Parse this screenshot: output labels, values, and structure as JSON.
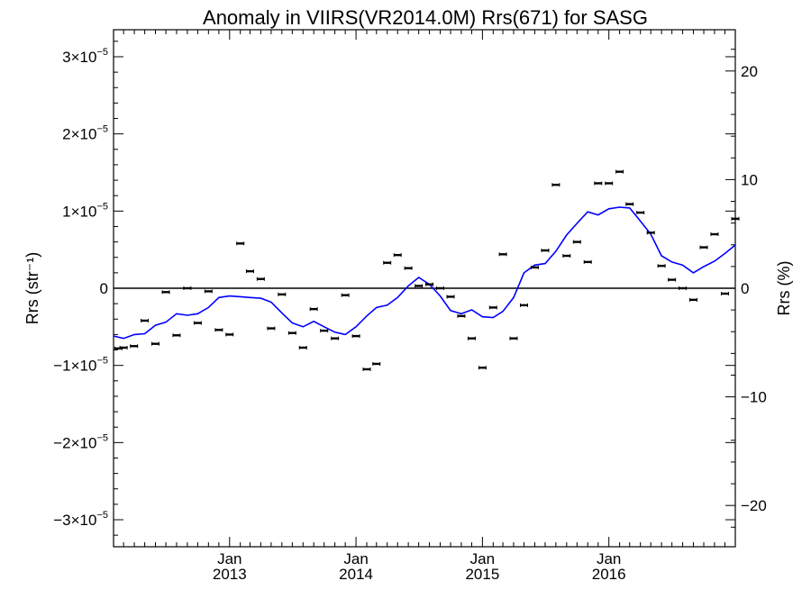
{
  "chart_data": {
    "type": "scatter",
    "title": "Anomaly in VIIRS(VR2014.0M) Rrs(671) for SASG",
    "ylabel_left": "Rrs (str⁻¹)",
    "ylabel_right": "Rrs (%)",
    "xlim": [
      "2012-02-01",
      "2016-12-31"
    ],
    "ylim_left": [
      -3.35e-05,
      3.35e-05
    ],
    "ylim_right": [
      -23.8,
      23.8
    ],
    "grid": false,
    "legend": "none",
    "x_ticks": [
      {
        "date": "2013-01-01",
        "month": "Jan",
        "year": "2013"
      },
      {
        "date": "2014-01-01",
        "month": "Jan",
        "year": "2014"
      },
      {
        "date": "2015-01-01",
        "month": "Jan",
        "year": "2015"
      },
      {
        "date": "2016-01-01",
        "month": "Jan",
        "year": "2016"
      }
    ],
    "y_ticks_left": [
      {
        "value": 3e-05,
        "mantissa": "3",
        "exp": "−5"
      },
      {
        "value": 2e-05,
        "mantissa": "2",
        "exp": "−5"
      },
      {
        "value": 1e-05,
        "mantissa": "1",
        "exp": "−5"
      },
      {
        "value": 0,
        "mantissa": "0",
        "exp": ""
      },
      {
        "value": -1e-05,
        "mantissa": "−1",
        "exp": "−5"
      },
      {
        "value": -2e-05,
        "mantissa": "−2",
        "exp": "−5"
      },
      {
        "value": -3e-05,
        "mantissa": "−3",
        "exp": "−5"
      }
    ],
    "y_ticks_right": [
      {
        "value": 20,
        "label": "20"
      },
      {
        "value": 10,
        "label": "10"
      },
      {
        "value": 0,
        "label": "0"
      },
      {
        "value": -10,
        "label": "−10"
      },
      {
        "value": -20,
        "label": "−20"
      }
    ],
    "zero_line": 0,
    "points": [
      {
        "x": "2012-02-15",
        "y": -7.8e-06
      },
      {
        "x": "2012-03-01",
        "y": -7.7e-06
      },
      {
        "x": "2012-03-31",
        "y": -7.5e-06
      },
      {
        "x": "2012-05-01",
        "y": -4.2e-06
      },
      {
        "x": "2012-06-01",
        "y": -7.2e-06
      },
      {
        "x": "2012-07-01",
        "y": -5e-07
      },
      {
        "x": "2012-08-01",
        "y": -6.1e-06
      },
      {
        "x": "2012-09-01",
        "y": 0.0
      },
      {
        "x": "2012-10-01",
        "y": -4.5e-06
      },
      {
        "x": "2012-11-01",
        "y": -4e-07
      },
      {
        "x": "2012-12-01",
        "y": -5.4e-06
      },
      {
        "x": "2013-01-01",
        "y": -6e-06
      },
      {
        "x": "2013-02-01",
        "y": 5.8e-06
      },
      {
        "x": "2013-03-01",
        "y": 2.2e-06
      },
      {
        "x": "2013-04-01",
        "y": 1.2e-06
      },
      {
        "x": "2013-05-01",
        "y": -5.2e-06
      },
      {
        "x": "2013-06-01",
        "y": -8e-07
      },
      {
        "x": "2013-07-01",
        "y": -5.8e-06
      },
      {
        "x": "2013-08-01",
        "y": -7.7e-06
      },
      {
        "x": "2013-09-01",
        "y": -2.7e-06
      },
      {
        "x": "2013-10-01",
        "y": -5.5e-06
      },
      {
        "x": "2013-11-01",
        "y": -6.5e-06
      },
      {
        "x": "2013-12-01",
        "y": -9e-07
      },
      {
        "x": "2014-01-01",
        "y": -6.2e-06
      },
      {
        "x": "2014-02-01",
        "y": -1.05e-05
      },
      {
        "x": "2014-03-01",
        "y": -9.8e-06
      },
      {
        "x": "2014-04-01",
        "y": 3.3e-06
      },
      {
        "x": "2014-05-01",
        "y": 4.3e-06
      },
      {
        "x": "2014-06-01",
        "y": 2.6e-06
      },
      {
        "x": "2014-07-01",
        "y": 3e-07
      },
      {
        "x": "2014-08-01",
        "y": 5e-07
      },
      {
        "x": "2014-09-01",
        "y": 0.0
      },
      {
        "x": "2014-10-01",
        "y": -1.1e-06
      },
      {
        "x": "2014-11-01",
        "y": -3.6e-06
      },
      {
        "x": "2014-12-01",
        "y": -6.5e-06
      },
      {
        "x": "2015-01-01",
        "y": -1.03e-05
      },
      {
        "x": "2015-02-01",
        "y": -2.5e-06
      },
      {
        "x": "2015-03-01",
        "y": 4.4e-06
      },
      {
        "x": "2015-04-01",
        "y": -6.5e-06
      },
      {
        "x": "2015-05-01",
        "y": -2.2e-06
      },
      {
        "x": "2015-06-01",
        "y": 2.7e-06
      },
      {
        "x": "2015-07-01",
        "y": 4.9e-06
      },
      {
        "x": "2015-08-01",
        "y": 1.34e-05
      },
      {
        "x": "2015-09-01",
        "y": 4.2e-06
      },
      {
        "x": "2015-10-01",
        "y": 6e-06
      },
      {
        "x": "2015-11-01",
        "y": 3.4e-06
      },
      {
        "x": "2015-12-01",
        "y": 1.36e-05
      },
      {
        "x": "2016-01-01",
        "y": 1.36e-05
      },
      {
        "x": "2016-02-01",
        "y": 1.51e-05
      },
      {
        "x": "2016-03-01",
        "y": 1.09e-05
      },
      {
        "x": "2016-04-01",
        "y": 9.8e-06
      },
      {
        "x": "2016-05-01",
        "y": 7.2e-06
      },
      {
        "x": "2016-06-01",
        "y": 2.9e-06
      },
      {
        "x": "2016-07-01",
        "y": 1.1e-06
      },
      {
        "x": "2016-08-01",
        "y": 0.0
      },
      {
        "x": "2016-09-01",
        "y": -1.5e-06
      },
      {
        "x": "2016-10-01",
        "y": 5.3e-06
      },
      {
        "x": "2016-11-01",
        "y": 7e-06
      },
      {
        "x": "2016-12-01",
        "y": -7e-07
      },
      {
        "x": "2016-12-31",
        "y": 9e-06
      }
    ],
    "line": {
      "color": "#0000ff",
      "points": [
        {
          "x": "2012-02-01",
          "y": -6.2e-06
        },
        {
          "x": "2012-03-01",
          "y": -6.5e-06
        },
        {
          "x": "2012-04-01",
          "y": -6e-06
        },
        {
          "x": "2012-05-01",
          "y": -5.9e-06
        },
        {
          "x": "2012-06-01",
          "y": -4.8e-06
        },
        {
          "x": "2012-07-01",
          "y": -4.4e-06
        },
        {
          "x": "2012-08-01",
          "y": -3.3e-06
        },
        {
          "x": "2012-09-01",
          "y": -3.5e-06
        },
        {
          "x": "2012-10-01",
          "y": -3.3e-06
        },
        {
          "x": "2012-11-01",
          "y": -2.5e-06
        },
        {
          "x": "2012-12-01",
          "y": -1.2e-06
        },
        {
          "x": "2013-01-01",
          "y": -1e-06
        },
        {
          "x": "2013-02-01",
          "y": -1.1e-06
        },
        {
          "x": "2013-03-01",
          "y": -1.2e-06
        },
        {
          "x": "2013-04-01",
          "y": -1.3e-06
        },
        {
          "x": "2013-05-01",
          "y": -1.8e-06
        },
        {
          "x": "2013-06-01",
          "y": -3.2e-06
        },
        {
          "x": "2013-07-01",
          "y": -4.5e-06
        },
        {
          "x": "2013-08-01",
          "y": -5e-06
        },
        {
          "x": "2013-09-01",
          "y": -4.3e-06
        },
        {
          "x": "2013-10-01",
          "y": -5e-06
        },
        {
          "x": "2013-11-01",
          "y": -5.7e-06
        },
        {
          "x": "2013-12-01",
          "y": -6e-06
        },
        {
          "x": "2014-01-01",
          "y": -5e-06
        },
        {
          "x": "2014-02-01",
          "y": -3.6e-06
        },
        {
          "x": "2014-03-01",
          "y": -2.5e-06
        },
        {
          "x": "2014-04-01",
          "y": -2.2e-06
        },
        {
          "x": "2014-05-01",
          "y": -1.2e-06
        },
        {
          "x": "2014-06-01",
          "y": 3e-07
        },
        {
          "x": "2014-07-01",
          "y": 1.4e-06
        },
        {
          "x": "2014-08-01",
          "y": 5e-07
        },
        {
          "x": "2014-09-01",
          "y": -1e-06
        },
        {
          "x": "2014-10-01",
          "y": -2.9e-06
        },
        {
          "x": "2014-11-01",
          "y": -3.3e-06
        },
        {
          "x": "2014-12-01",
          "y": -2.8e-06
        },
        {
          "x": "2015-01-01",
          "y": -3.7e-06
        },
        {
          "x": "2015-02-01",
          "y": -3.8e-06
        },
        {
          "x": "2015-03-01",
          "y": -3e-06
        },
        {
          "x": "2015-04-01",
          "y": -1.2e-06
        },
        {
          "x": "2015-05-01",
          "y": 2e-06
        },
        {
          "x": "2015-06-01",
          "y": 3e-06
        },
        {
          "x": "2015-07-01",
          "y": 3.2e-06
        },
        {
          "x": "2015-08-01",
          "y": 4.8e-06
        },
        {
          "x": "2015-09-01",
          "y": 6.9e-06
        },
        {
          "x": "2015-10-01",
          "y": 8.4e-06
        },
        {
          "x": "2015-11-01",
          "y": 9.9e-06
        },
        {
          "x": "2015-12-01",
          "y": 9.5e-06
        },
        {
          "x": "2016-01-01",
          "y": 1.03e-05
        },
        {
          "x": "2016-02-01",
          "y": 1.05e-05
        },
        {
          "x": "2016-03-01",
          "y": 1.04e-05
        },
        {
          "x": "2016-04-01",
          "y": 8.7e-06
        },
        {
          "x": "2016-05-01",
          "y": 7e-06
        },
        {
          "x": "2016-06-01",
          "y": 4.2e-06
        },
        {
          "x": "2016-07-01",
          "y": 3.4e-06
        },
        {
          "x": "2016-08-01",
          "y": 3e-06
        },
        {
          "x": "2016-09-01",
          "y": 2e-06
        },
        {
          "x": "2016-10-01",
          "y": 2.8e-06
        },
        {
          "x": "2016-11-01",
          "y": 3.5e-06
        },
        {
          "x": "2016-12-01",
          "y": 4.5e-06
        },
        {
          "x": "2016-12-31",
          "y": 5.6e-06
        }
      ]
    }
  }
}
